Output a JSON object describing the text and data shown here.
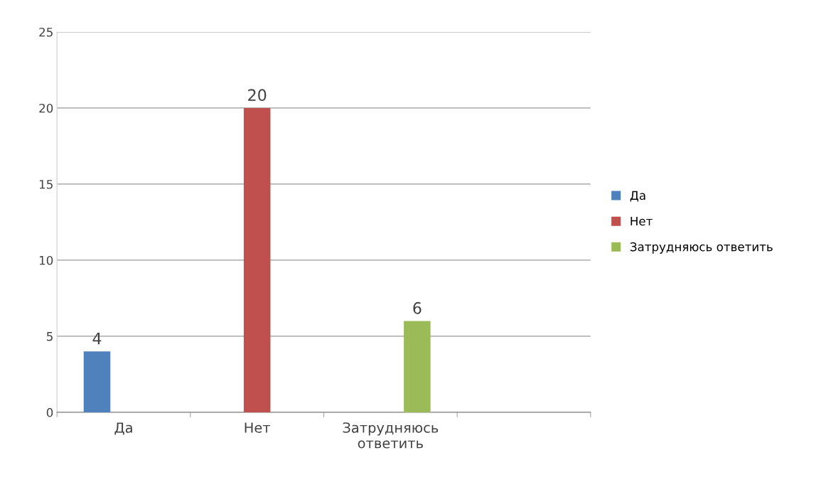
{
  "chart_data": {
    "type": "bar",
    "categories": [
      "Да",
      "Нет",
      "Затрудняюсь ответить",
      null
    ],
    "series": [
      {
        "name": "Да",
        "color": "#4f81bd",
        "values": [
          4,
          null,
          null,
          null
        ]
      },
      {
        "name": "Нет",
        "color": "#c0504d",
        "values": [
          null,
          20,
          null,
          null
        ]
      },
      {
        "name": "Затрудняюсь ответить",
        "color": "#9bbb59",
        "values": [
          null,
          null,
          6,
          null
        ]
      }
    ],
    "ylim": [
      0,
      25
    ],
    "yticks": [
      0,
      5,
      10,
      15,
      20,
      25
    ],
    "grid": "y",
    "legend": "right",
    "data_labels": true
  }
}
